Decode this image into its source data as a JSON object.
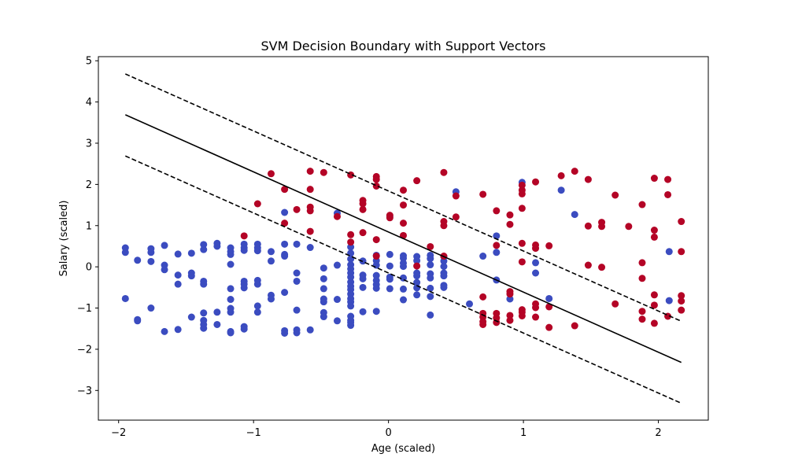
{
  "chart_data": {
    "type": "scatter",
    "title": "SVM Decision Boundary with Support Vectors",
    "xlabel": "Age (scaled)",
    "ylabel": "Salary (scaled)",
    "xlim": [
      -2.15,
      2.37
    ],
    "ylim": [
      -3.72,
      5.1
    ],
    "xticks": [
      -2,
      -1,
      0,
      1,
      2
    ],
    "yticks": [
      -3,
      -2,
      -1,
      0,
      1,
      2,
      3,
      4,
      5
    ],
    "grid": false,
    "colors": {
      "class_0": "#3b4cc0",
      "class_1": "#b40426",
      "boundary": "#000000"
    },
    "lines": [
      {
        "name": "margin-upper",
        "style": "dashed",
        "x": [
          -1.95,
          2.17
        ],
        "y": [
          4.68,
          -1.32
        ]
      },
      {
        "name": "decision-boundary",
        "style": "solid",
        "x": [
          -1.95,
          2.17
        ],
        "y": [
          3.69,
          -2.32
        ]
      },
      {
        "name": "margin-lower",
        "style": "dashed",
        "x": [
          -1.95,
          2.17
        ],
        "y": [
          2.69,
          -3.31
        ]
      }
    ],
    "series": [
      {
        "class": 0,
        "points": [
          [
            -1.95,
            0.46
          ],
          [
            -1.95,
            0.35
          ],
          [
            -1.95,
            -0.77
          ],
          [
            -1.86,
            0.16
          ],
          [
            -1.86,
            -1.28
          ],
          [
            -1.86,
            -1.31
          ],
          [
            -1.76,
            0.44
          ],
          [
            -1.76,
            0.35
          ],
          [
            -1.76,
            0.13
          ],
          [
            -1.76,
            -1.0
          ],
          [
            -1.66,
            0.52
          ],
          [
            -1.66,
            0.04
          ],
          [
            -1.66,
            -0.07
          ],
          [
            -1.66,
            -1.57
          ],
          [
            -1.56,
            0.31
          ],
          [
            -1.56,
            -0.2
          ],
          [
            -1.56,
            -0.42
          ],
          [
            -1.56,
            -1.52
          ],
          [
            -1.46,
            0.33
          ],
          [
            -1.46,
            -0.15
          ],
          [
            -1.46,
            -0.22
          ],
          [
            -1.46,
            -1.22
          ],
          [
            -1.37,
            0.54
          ],
          [
            -1.37,
            0.42
          ],
          [
            -1.37,
            -0.35
          ],
          [
            -1.37,
            -0.42
          ],
          [
            -1.37,
            -1.12
          ],
          [
            -1.37,
            -1.3
          ],
          [
            -1.37,
            -1.4
          ],
          [
            -1.37,
            -1.49
          ],
          [
            -1.27,
            0.57
          ],
          [
            -1.27,
            0.5
          ],
          [
            -1.27,
            -1.1
          ],
          [
            -1.27,
            -1.4
          ],
          [
            -1.17,
            0.46
          ],
          [
            -1.17,
            0.37
          ],
          [
            -1.17,
            0.3
          ],
          [
            -1.17,
            0.06
          ],
          [
            -1.17,
            -0.53
          ],
          [
            -1.17,
            -0.79
          ],
          [
            -1.17,
            -1.01
          ],
          [
            -1.17,
            -1.1
          ],
          [
            -1.17,
            -1.57
          ],
          [
            -1.17,
            -1.6
          ],
          [
            -1.07,
            0.55
          ],
          [
            -1.07,
            0.46
          ],
          [
            -1.07,
            0.4
          ],
          [
            -1.07,
            -0.35
          ],
          [
            -1.07,
            -0.42
          ],
          [
            -1.07,
            -0.51
          ],
          [
            -1.07,
            -1.45
          ],
          [
            -1.07,
            -1.51
          ],
          [
            -0.97,
            0.55
          ],
          [
            -0.97,
            0.46
          ],
          [
            -0.97,
            0.39
          ],
          [
            -0.97,
            -0.33
          ],
          [
            -0.97,
            -0.42
          ],
          [
            -0.97,
            -0.95
          ],
          [
            -0.97,
            -1.1
          ],
          [
            -0.87,
            0.37
          ],
          [
            -0.87,
            0.14
          ],
          [
            -0.87,
            -0.69
          ],
          [
            -0.87,
            -0.78
          ],
          [
            -0.77,
            1.32
          ],
          [
            -0.77,
            0.55
          ],
          [
            -0.77,
            0.3
          ],
          [
            -0.77,
            0.26
          ],
          [
            -0.77,
            -0.62
          ],
          [
            -0.77,
            -1.55
          ],
          [
            -0.77,
            -1.61
          ],
          [
            -0.68,
            0.55
          ],
          [
            -0.68,
            -0.15
          ],
          [
            -0.68,
            -0.35
          ],
          [
            -0.68,
            -1.05
          ],
          [
            -0.68,
            -1.53
          ],
          [
            -0.68,
            -1.6
          ],
          [
            -0.58,
            0.47
          ],
          [
            -0.58,
            -1.53
          ],
          [
            -0.48,
            -0.03
          ],
          [
            -0.48,
            -0.29
          ],
          [
            -0.48,
            -0.53
          ],
          [
            -0.48,
            -0.78
          ],
          [
            -0.48,
            -0.85
          ],
          [
            -0.48,
            -1.11
          ],
          [
            -0.48,
            -1.21
          ],
          [
            -0.38,
            1.3
          ],
          [
            -0.38,
            0.04
          ],
          [
            -0.38,
            -0.79
          ],
          [
            -0.38,
            -1.31
          ],
          [
            -0.28,
            0.48
          ],
          [
            -0.28,
            0.33
          ],
          [
            -0.28,
            0.19
          ],
          [
            -0.28,
            0.05
          ],
          [
            -0.28,
            -0.05
          ],
          [
            -0.28,
            -0.15
          ],
          [
            -0.28,
            -0.25
          ],
          [
            -0.28,
            -0.37
          ],
          [
            -0.28,
            -0.47
          ],
          [
            -0.28,
            -0.55
          ],
          [
            -0.28,
            -0.66
          ],
          [
            -0.28,
            -0.77
          ],
          [
            -0.28,
            -0.85
          ],
          [
            -0.28,
            -0.95
          ],
          [
            -0.28,
            -1.2
          ],
          [
            -0.28,
            -1.3
          ],
          [
            -0.28,
            -1.35
          ],
          [
            -0.28,
            -1.42
          ],
          [
            -0.19,
            0.14
          ],
          [
            -0.19,
            -0.2
          ],
          [
            -0.19,
            -0.29
          ],
          [
            -0.19,
            -0.5
          ],
          [
            -0.19,
            -1.09
          ],
          [
            -0.09,
            0.28
          ],
          [
            -0.09,
            0.15
          ],
          [
            -0.09,
            0.04
          ],
          [
            -0.09,
            -0.21
          ],
          [
            -0.09,
            -0.33
          ],
          [
            -0.09,
            -0.43
          ],
          [
            -0.09,
            -0.52
          ],
          [
            -0.09,
            -1.08
          ],
          [
            0.01,
            1.22
          ],
          [
            0.01,
            0.3
          ],
          [
            0.01,
            0.02
          ],
          [
            0.01,
            -0.25
          ],
          [
            0.01,
            -0.3
          ],
          [
            0.01,
            -0.53
          ],
          [
            0.11,
            0.27
          ],
          [
            0.11,
            0.21
          ],
          [
            0.11,
            0.09
          ],
          [
            0.11,
            0.01
          ],
          [
            0.11,
            -0.27
          ],
          [
            0.11,
            -0.54
          ],
          [
            0.11,
            -0.8
          ],
          [
            0.21,
            0.25
          ],
          [
            0.21,
            0.15
          ],
          [
            0.21,
            -0.15
          ],
          [
            0.21,
            -0.22
          ],
          [
            0.21,
            -0.38
          ],
          [
            0.21,
            -0.51
          ],
          [
            0.21,
            -0.68
          ],
          [
            0.31,
            0.28
          ],
          [
            0.31,
            0.2
          ],
          [
            0.31,
            0.05
          ],
          [
            0.31,
            -0.17
          ],
          [
            0.31,
            -0.27
          ],
          [
            0.31,
            -0.52
          ],
          [
            0.31,
            -0.72
          ],
          [
            0.31,
            -1.17
          ],
          [
            0.41,
            0.25
          ],
          [
            0.41,
            0.14
          ],
          [
            0.41,
            0.01
          ],
          [
            0.41,
            -0.15
          ],
          [
            0.41,
            -0.22
          ],
          [
            0.41,
            -0.45
          ],
          [
            0.41,
            -0.5
          ],
          [
            0.5,
            1.82
          ],
          [
            0.6,
            -0.9
          ],
          [
            0.7,
            0.26
          ],
          [
            0.8,
            0.75
          ],
          [
            0.8,
            0.35
          ],
          [
            0.8,
            -0.32
          ],
          [
            0.9,
            -0.78
          ],
          [
            0.99,
            2.05
          ],
          [
            1.09,
            0.1
          ],
          [
            1.09,
            -0.15
          ],
          [
            1.19,
            -0.77
          ],
          [
            1.28,
            1.86
          ],
          [
            1.38,
            1.27
          ],
          [
            2.08,
            0.37
          ],
          [
            2.08,
            -0.82
          ]
        ]
      },
      {
        "class": 1,
        "points": [
          [
            -1.07,
            0.75
          ],
          [
            -0.87,
            2.26
          ],
          [
            -0.97,
            1.53
          ],
          [
            -0.77,
            1.88
          ],
          [
            -0.77,
            1.06
          ],
          [
            -0.68,
            1.39
          ],
          [
            -0.58,
            2.32
          ],
          [
            -0.58,
            1.88
          ],
          [
            -0.58,
            1.45
          ],
          [
            -0.58,
            1.36
          ],
          [
            -0.58,
            0.86
          ],
          [
            -0.48,
            2.29
          ],
          [
            -0.38,
            1.22
          ],
          [
            -0.28,
            2.23
          ],
          [
            -0.28,
            0.78
          ],
          [
            -0.28,
            0.6
          ],
          [
            -0.19,
            1.61
          ],
          [
            -0.19,
            1.53
          ],
          [
            -0.19,
            1.39
          ],
          [
            -0.19,
            0.83
          ],
          [
            -0.09,
            2.19
          ],
          [
            -0.09,
            2.12
          ],
          [
            -0.09,
            1.96
          ],
          [
            -0.09,
            0.66
          ],
          [
            -0.09,
            0.26
          ],
          [
            0.01,
            1.25
          ],
          [
            0.01,
            1.19
          ],
          [
            0.11,
            1.86
          ],
          [
            0.11,
            1.5
          ],
          [
            0.11,
            1.06
          ],
          [
            0.11,
            0.76
          ],
          [
            0.21,
            2.09
          ],
          [
            0.21,
            0.02
          ],
          [
            0.31,
            0.49
          ],
          [
            0.41,
            2.29
          ],
          [
            0.41,
            1.1
          ],
          [
            0.41,
            1.0
          ],
          [
            0.41,
            0.26
          ],
          [
            0.5,
            1.72
          ],
          [
            0.5,
            1.21
          ],
          [
            0.7,
            1.76
          ],
          [
            0.7,
            -0.73
          ],
          [
            0.7,
            -1.13
          ],
          [
            0.7,
            -1.22
          ],
          [
            0.7,
            -1.33
          ],
          [
            0.7,
            -1.4
          ],
          [
            0.8,
            1.36
          ],
          [
            0.8,
            0.52
          ],
          [
            0.8,
            -1.13
          ],
          [
            0.8,
            -1.24
          ],
          [
            0.8,
            -1.35
          ],
          [
            0.9,
            1.26
          ],
          [
            0.9,
            1.03
          ],
          [
            0.9,
            -0.6
          ],
          [
            0.9,
            -0.66
          ],
          [
            0.9,
            -1.18
          ],
          [
            0.9,
            -1.3
          ],
          [
            0.99,
            1.98
          ],
          [
            0.99,
            1.86
          ],
          [
            0.99,
            1.77
          ],
          [
            0.99,
            1.42
          ],
          [
            0.99,
            0.57
          ],
          [
            0.99,
            0.12
          ],
          [
            0.99,
            -1.04
          ],
          [
            0.99,
            -1.1
          ],
          [
            0.99,
            -1.19
          ],
          [
            1.09,
            2.06
          ],
          [
            1.09,
            0.53
          ],
          [
            1.09,
            0.45
          ],
          [
            1.09,
            -0.9
          ],
          [
            1.09,
            -0.99
          ],
          [
            1.09,
            -1.22
          ],
          [
            1.19,
            0.51
          ],
          [
            1.19,
            -0.97
          ],
          [
            1.19,
            -1.47
          ],
          [
            1.28,
            2.21
          ],
          [
            1.38,
            2.32
          ],
          [
            1.38,
            -1.43
          ],
          [
            1.48,
            2.12
          ],
          [
            1.48,
            0.99
          ],
          [
            1.48,
            0.04
          ],
          [
            1.58,
            1.08
          ],
          [
            1.58,
            0.98
          ],
          [
            1.58,
            -0.01
          ],
          [
            1.68,
            1.74
          ],
          [
            1.68,
            -0.9
          ],
          [
            1.78,
            0.98
          ],
          [
            1.88,
            1.51
          ],
          [
            1.88,
            0.1
          ],
          [
            1.88,
            -0.28
          ],
          [
            1.88,
            -1.08
          ],
          [
            1.88,
            -1.27
          ],
          [
            1.97,
            2.15
          ],
          [
            1.97,
            0.89
          ],
          [
            1.97,
            0.72
          ],
          [
            1.97,
            -0.68
          ],
          [
            1.97,
            -0.93
          ],
          [
            1.97,
            -1.37
          ],
          [
            2.07,
            2.12
          ],
          [
            2.07,
            1.75
          ],
          [
            2.07,
            -1.2
          ],
          [
            2.17,
            1.1
          ],
          [
            2.17,
            0.37
          ],
          [
            2.17,
            -0.7
          ],
          [
            2.17,
            -0.83
          ],
          [
            2.17,
            -1.05
          ]
        ]
      }
    ]
  }
}
